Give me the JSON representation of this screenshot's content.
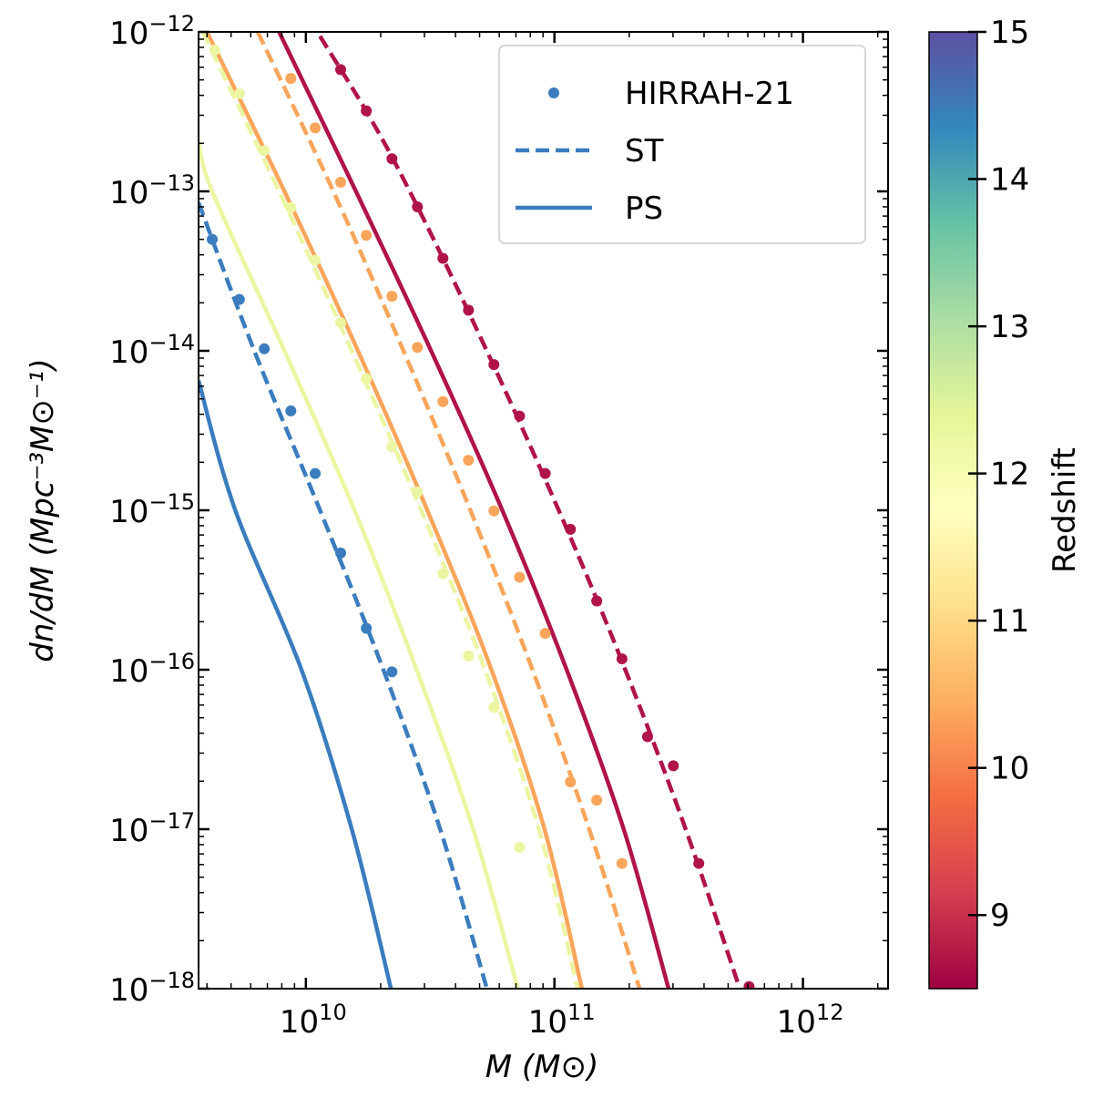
{
  "chart_data": {
    "type": "line",
    "xlabel": "M (M⊙)",
    "ylabel": "dn/dM (Mpc⁻³M⊙⁻¹)",
    "xscale": "log",
    "yscale": "log",
    "xlim": [
      3700000000.0,
      2200000000000.0
    ],
    "ylim": [
      1e-18,
      1e-12
    ],
    "xticks": [
      {
        "value": 10000000000.0,
        "label": "10",
        "exponent": "10"
      },
      {
        "value": 100000000000.0,
        "label": "10",
        "exponent": "11"
      },
      {
        "value": 1000000000000.0,
        "label": "10",
        "exponent": "12"
      }
    ],
    "yticks": [
      {
        "value": 1e-18,
        "label": "10",
        "exponent": "−18"
      },
      {
        "value": 1e-17,
        "label": "10",
        "exponent": "−17"
      },
      {
        "value": 1e-16,
        "label": "10",
        "exponent": "−16"
      },
      {
        "value": 1e-15,
        "label": "10",
        "exponent": "−15"
      },
      {
        "value": 1e-14,
        "label": "10",
        "exponent": "−14"
      },
      {
        "value": 1e-13,
        "label": "10",
        "exponent": "−13"
      },
      {
        "value": 1e-12,
        "label": "10",
        "exponent": "−12"
      }
    ],
    "legend": {
      "position": "upper right",
      "entries": [
        {
          "label": "HIRRAH-21",
          "style": "dots",
          "color": "#3a7cbe"
        },
        {
          "label": "ST",
          "style": "dashed",
          "color": "#3a7cbe"
        },
        {
          "label": "PS",
          "style": "solid",
          "color": "#3a7cbe"
        }
      ]
    },
    "colorbar": {
      "label": "Redshift",
      "lim": [
        8.5,
        15
      ],
      "ticks": [
        9,
        10,
        11,
        12,
        13,
        14,
        15
      ],
      "colors": [
        "#9e0142",
        "#d53e4f",
        "#f46d43",
        "#fdae61",
        "#fee08b",
        "#ffffbf",
        "#e6f598",
        "#abdda4",
        "#66c2a5",
        "#3288bd",
        "#5e4fa2"
      ]
    },
    "series": [
      {
        "style": "dashed",
        "color": "#b0134a",
        "x": [
          11400000000.0,
          22400000000.0,
          56700000000.0,
          144000000000.0,
          308000000000.0,
          557000000000.0
        ],
        "values": [
          9.4e-13,
          1.6e-13,
          8.2e-15,
          3.06e-16,
          1.48e-17,
          1e-18
        ]
      },
      {
        "style": "solid",
        "color": "#b0134a",
        "x": [
          7800000000.0,
          15900000000.0,
          31900000000.0,
          61700000000.0,
          112000000000.0,
          190000000000.0,
          288000000000.0
        ],
        "values": [
          1e-12,
          1e-13,
          1e-14,
          1e-15,
          1e-16,
          1e-17,
          1e-18
        ]
      },
      {
        "style": "dashed",
        "color": "#f9a55b",
        "x": [
          6400000000.0,
          12900000000.0,
          24700000000.0,
          45900000000.0,
          81600000000.0,
          138000000000.0,
          220000000000.0
        ],
        "values": [
          1e-12,
          1e-13,
          1e-14,
          1e-15,
          1e-16,
          1e-17,
          1e-18
        ]
      },
      {
        "style": "solid",
        "color": "#f9a55b",
        "x": [
          4000000000.0,
          8200000000.0,
          16200000000.0,
          30800000000.0,
          55800000000.0,
          91200000000.0,
          129000000000.0
        ],
        "values": [
          1e-12,
          1e-13,
          1e-14,
          1e-15,
          1e-16,
          1e-17,
          1e-18
        ]
      },
      {
        "style": "dashed",
        "color": "#ecf5a2",
        "x": [
          3850000000.0,
          7800000000.0,
          15300000000.0,
          29100000000.0,
          52600000000.0,
          86600000000.0,
          124000000000.0
        ],
        "values": [
          1e-12,
          1e-13,
          1e-14,
          1e-15,
          1e-16,
          1e-17,
          1e-18
        ]
      },
      {
        "style": "solid",
        "color": "#ecf5a2",
        "x": [
          3700000000.0,
          4200000000.0,
          8200000000.0,
          15700000000.0,
          27900000000.0,
          47100000000.0,
          71300000000.0
        ],
        "values": [
          2.1e-13,
          1e-13,
          1e-14,
          1e-15,
          1e-16,
          1e-17,
          1e-18
        ]
      },
      {
        "style": "dashed",
        "color": "#3a7cbe",
        "x": [
          3700000000.0,
          6200000000.0,
          11400000000.0,
          20500000000.0,
          34700000000.0,
          53500000000.0
        ],
        "values": [
          8.5e-14,
          1e-14,
          1e-15,
          1e-16,
          1e-17,
          1e-18
        ]
      },
      {
        "style": "solid",
        "color": "#3a7cbe",
        "x": [
          3700000000.0,
          5200000000.0,
          9600000000.0,
          15300000000.0,
          22000000000.0
        ],
        "values": [
          6.5e-15,
          1e-15,
          1e-16,
          1e-17,
          1e-18
        ]
      },
      {
        "style": "dots",
        "color": "#ecf5a2",
        "x": [
          4300000000.0,
          5400000000.0,
          6800000000.0,
          8700000000.0,
          10900000000.0,
          13800000000.0,
          17500000000.0,
          22200000000.0,
          28100000000.0,
          35600000000.0,
          45100000000.0,
          57100000000.0,
          72400000000.0
        ],
        "values": [
          7.7e-13,
          4.1e-13,
          1.8e-13,
          7.9e-14,
          3.7e-14,
          1.5e-14,
          6.7e-15,
          2.5e-15,
          1.3e-15,
          4e-16,
          1.22e-16,
          5.8e-17,
          7.7e-18
        ]
      },
      {
        "style": "dots",
        "color": "#f9a55b",
        "x": [
          8700000000.0,
          10900000000.0,
          13800000000.0,
          17500000000.0,
          22200000000.0,
          28100000000.0,
          35600000000.0,
          45100000000.0,
          57100000000.0,
          72400000000.0,
          91800000000.0,
          116000000000.0,
          148000000000.0,
          187000000000.0
        ],
        "values": [
          5.1e-13,
          2.5e-13,
          1.14e-13,
          5.3e-14,
          2.2e-14,
          1.05e-14,
          4.8e-15,
          2.06e-15,
          9.9e-16,
          3.8e-16,
          1.69e-16,
          1.98e-17,
          1.52e-17,
          6.1e-18
        ]
      },
      {
        "style": "dots",
        "color": "#b0134a",
        "x": [
          13800000000.0,
          17500000000.0,
          22200000000.0,
          28100000000.0,
          35600000000.0,
          45100000000.0,
          57100000000.0,
          72400000000.0,
          91800000000.0,
          116000000000.0,
          148000000000.0,
          187000000000.0,
          237000000000.0,
          301000000000.0,
          381000000000.0,
          607000000000.0
        ],
        "values": [
          5.8e-13,
          3.2e-13,
          1.6e-13,
          8e-14,
          3.8e-14,
          1.8e-14,
          8.2e-15,
          3.9e-15,
          1.7e-15,
          7.6e-16,
          2.7e-16,
          1.17e-16,
          3.8e-17,
          2.5e-17,
          6.1e-18,
          1.03e-18
        ]
      },
      {
        "style": "dots",
        "color": "#3a7cbe",
        "x": [
          4200000000.0,
          5400000000.0,
          6800000000.0,
          8700000000.0,
          10900000000.0,
          13800000000.0,
          17500000000.0,
          22200000000.0
        ],
        "values": [
          5e-14,
          2.1e-14,
          1.03e-14,
          4.2e-15,
          1.7e-15,
          5.4e-16,
          1.82e-16,
          9.7e-17
        ]
      }
    ]
  }
}
